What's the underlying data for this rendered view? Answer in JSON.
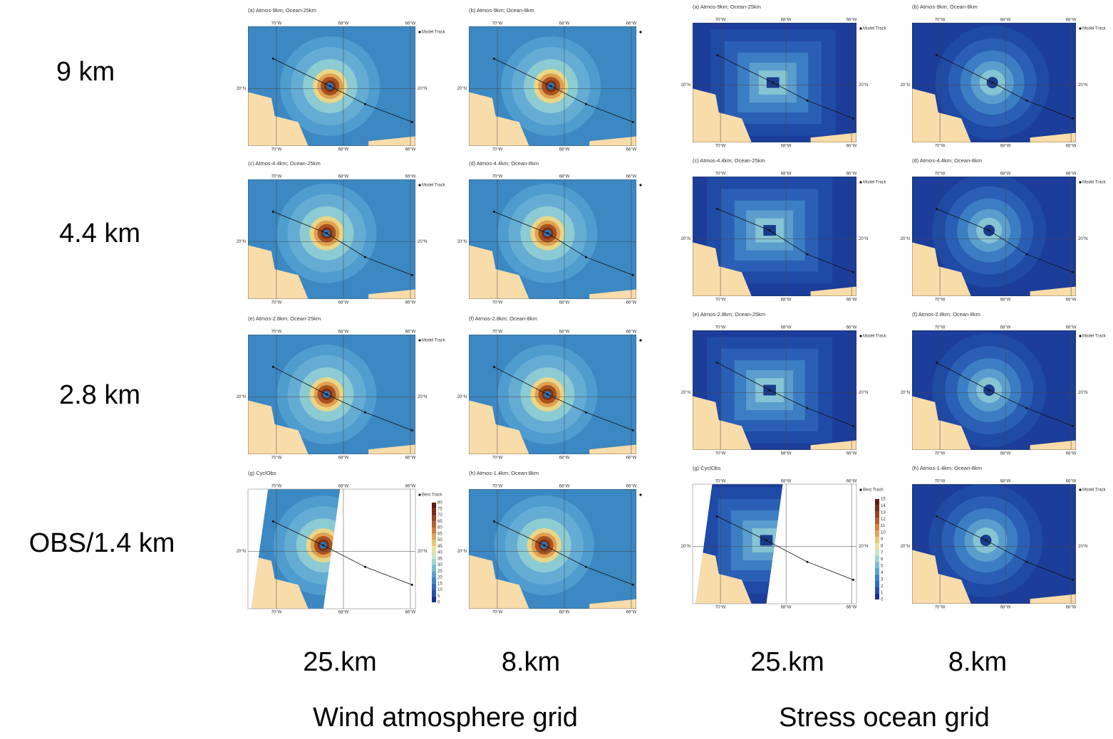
{
  "row_labels": [
    "9 km",
    "4.4 km",
    "2.8 km",
    "OBS/1.4 km"
  ],
  "column_labels": [
    "25.km",
    "8.km",
    "25.km",
    "8.km"
  ],
  "group_labels": [
    "Wind atmosphere grid",
    "Stress ocean grid"
  ],
  "map_labels": {
    "lon": [
      "70°W",
      "68°W",
      "66°W"
    ],
    "lat": "20°N"
  },
  "groups": [
    {
      "panels": [
        {
          "title": "(a) Atmos-9km; Ocean-25km",
          "legend": "Model Track"
        },
        {
          "title": "(b) Atmos-9km; Ocean-8km"
        },
        {
          "title": "(c) Atmos-4.4km; Ocean-25km",
          "legend": "Model Track"
        },
        {
          "title": "(d) Atmos-4.4km; Ocean-8km"
        },
        {
          "title": "(e) Atmos-2.8km; Ocean-25km",
          "legend": "Model Track"
        },
        {
          "title": "(f) Atmos-2.8km; Ocean-8km"
        },
        {
          "title": "(g) CyclObs",
          "legend": "Best Track"
        },
        {
          "title": "(h) Atmos-1.4km; Ocean-8km"
        }
      ],
      "colorbar": {
        "ticks": [
          0,
          5,
          10,
          15,
          20,
          25,
          30,
          35,
          40,
          45,
          50,
          55,
          60,
          65,
          70,
          75,
          80
        ]
      }
    },
    {
      "panels": [
        {
          "title": "(a) Atmos-9km; Ocean-25km",
          "legend": "Model Track"
        },
        {
          "title": "(b) Atmos-9km; Ocean-8km",
          "legend": "Model Track"
        },
        {
          "title": "(c) Atmos-4.4km; Ocean-25km",
          "legend": "Model Track"
        },
        {
          "title": "(d) Atmos-4.4km; Ocean-8km",
          "legend": "Model Track"
        },
        {
          "title": "(e) Atmos-2.8km; Ocean-25km",
          "legend": "Model Track"
        },
        {
          "title": "(f) Atmos-2.8km; Ocean-8km",
          "legend": "Model Track"
        },
        {
          "title": "(g) CyclObs",
          "legend": "Best Track"
        },
        {
          "title": "(h) Atmos-1.4km; Ocean-8km",
          "legend": "Model Track"
        }
      ],
      "colorbar": {
        "ticks": [
          0,
          1,
          2,
          3,
          4,
          5,
          6,
          7,
          8,
          9,
          10,
          11,
          12,
          13,
          14,
          15
        ]
      }
    }
  ]
}
